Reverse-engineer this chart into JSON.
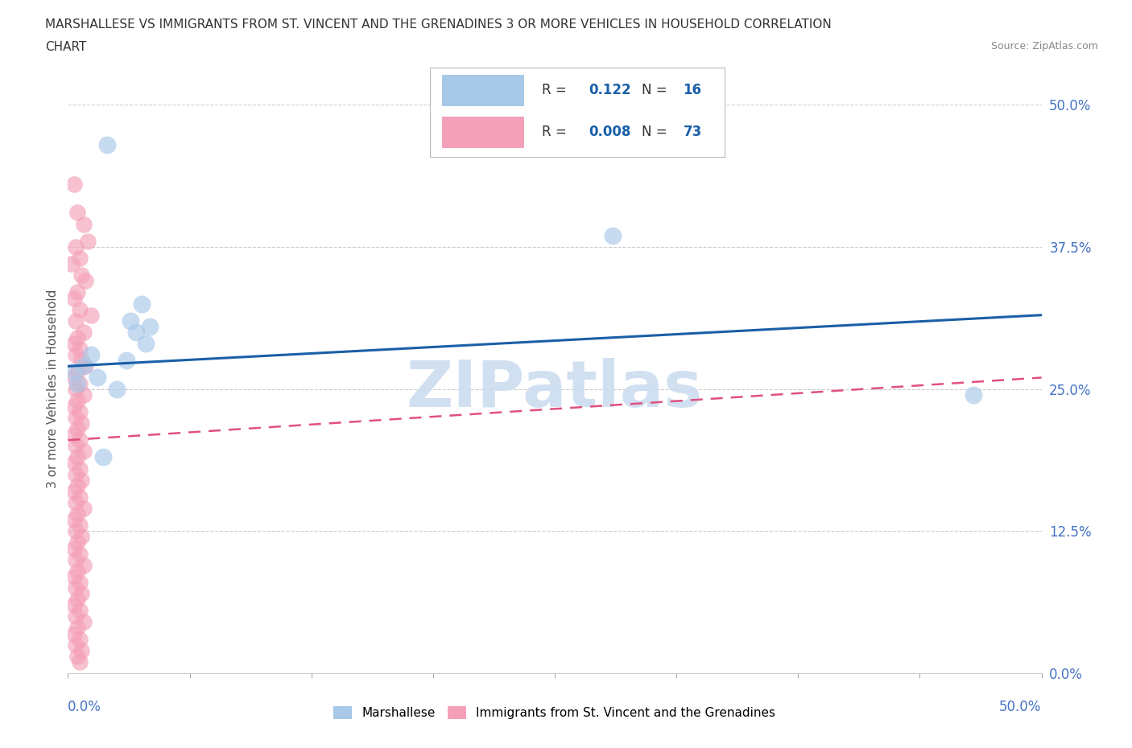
{
  "title_line1": "MARSHALLESE VS IMMIGRANTS FROM ST. VINCENT AND THE GRENADINES 3 OR MORE VEHICLES IN HOUSEHOLD CORRELATION",
  "title_line2": "CHART",
  "source_text": "Source: ZipAtlas.com",
  "ylabel": "3 or more Vehicles in Household",
  "xmin": 0.0,
  "xmax": 50.0,
  "ymin": 0.0,
  "ymax": 50.0,
  "ytick_values": [
    0,
    12.5,
    25.0,
    37.5,
    50.0
  ],
  "xtick_minor_values": [
    0,
    6.25,
    12.5,
    18.75,
    25.0,
    31.25,
    37.5,
    43.75,
    50.0
  ],
  "blue_color": "#a8c8e8",
  "pink_color": "#f4a0b8",
  "blue_edge_color": "#a8c8e8",
  "pink_edge_color": "#f4a0b8",
  "blue_line_color": "#1a5fa8",
  "pink_line_color": "#e05080",
  "watermark_text": "ZIPatlas",
  "watermark_color": "#ccddf0",
  "legend_R_blue": "0.122",
  "legend_N_blue": "16",
  "legend_R_pink": "0.008",
  "legend_N_pink": "73",
  "legend_label_blue": "Marshallese",
  "legend_label_pink": "Immigrants from St. Vincent and the Grenadines",
  "blue_trend_x0": 0.0,
  "blue_trend_y0": 27.0,
  "blue_trend_x1": 50.0,
  "blue_trend_y1": 31.5,
  "pink_trend_x0": 0.0,
  "pink_trend_y0": 20.5,
  "pink_trend_x1": 50.0,
  "pink_trend_y1": 26.0,
  "blue_x": [
    2.0,
    3.8,
    3.2,
    3.5,
    4.2,
    4.0,
    1.2,
    0.8,
    28.0,
    46.5,
    1.5,
    3.0,
    2.5,
    0.5,
    0.3,
    1.8
  ],
  "blue_y": [
    46.5,
    32.5,
    31.0,
    30.0,
    30.5,
    29.0,
    28.0,
    27.0,
    38.5,
    24.5,
    26.0,
    27.5,
    25.0,
    25.5,
    26.5,
    19.0
  ],
  "pink_x": [
    0.3,
    0.5,
    0.8,
    1.0,
    0.4,
    0.6,
    0.2,
    0.7,
    0.9,
    0.5,
    0.3,
    0.6,
    1.2,
    0.4,
    0.8,
    0.5,
    0.3,
    0.6,
    0.4,
    0.7,
    0.9,
    0.5,
    0.3,
    0.6,
    0.4,
    0.8,
    0.5,
    0.3,
    0.6,
    0.4,
    0.7,
    0.5,
    0.3,
    0.6,
    0.4,
    0.8,
    0.5,
    0.3,
    0.6,
    0.4,
    0.7,
    0.5,
    0.3,
    0.6,
    0.4,
    0.8,
    0.5,
    0.3,
    0.6,
    0.4,
    0.7,
    0.5,
    0.3,
    0.6,
    0.4,
    0.8,
    0.5,
    0.3,
    0.6,
    0.4,
    0.7,
    0.5,
    0.3,
    0.6,
    0.4,
    0.8,
    0.5,
    0.3,
    0.6,
    0.4,
    0.7,
    0.5,
    0.6
  ],
  "pink_y": [
    43.0,
    40.5,
    39.5,
    38.0,
    37.5,
    36.5,
    36.0,
    35.0,
    34.5,
    33.5,
    33.0,
    32.0,
    31.5,
    31.0,
    30.0,
    29.5,
    29.0,
    28.5,
    28.0,
    27.5,
    27.0,
    26.5,
    26.0,
    25.5,
    25.0,
    24.5,
    24.0,
    23.5,
    23.0,
    22.5,
    22.0,
    21.5,
    21.0,
    20.5,
    20.0,
    19.5,
    19.0,
    18.5,
    18.0,
    17.5,
    17.0,
    16.5,
    16.0,
    15.5,
    15.0,
    14.5,
    14.0,
    13.5,
    13.0,
    12.5,
    12.0,
    11.5,
    11.0,
    10.5,
    10.0,
    9.5,
    9.0,
    8.5,
    8.0,
    7.5,
    7.0,
    6.5,
    6.0,
    5.5,
    5.0,
    4.5,
    4.0,
    3.5,
    3.0,
    2.5,
    2.0,
    1.5,
    1.0
  ],
  "background_color": "#ffffff",
  "grid_color": "#cccccc",
  "accent_color": "#4472c4"
}
